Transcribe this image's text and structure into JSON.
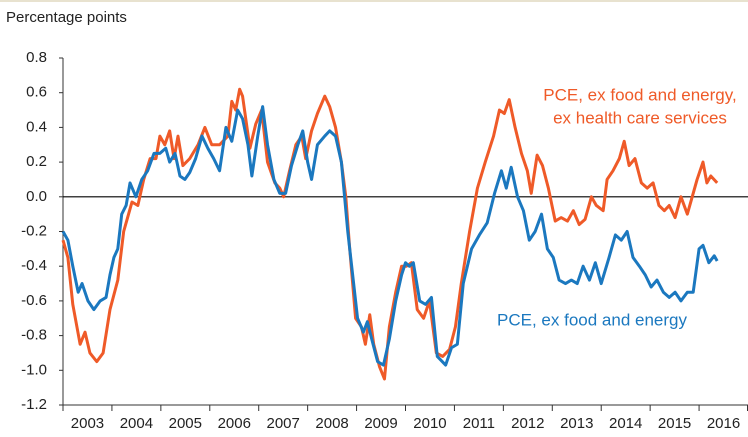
{
  "chart_data": {
    "type": "line",
    "y_axis_label": "Percentage points",
    "xlim": [
      2003,
      2017
    ],
    "xticks": [
      2003,
      2004,
      2005,
      2006,
      2007,
      2008,
      2009,
      2010,
      2011,
      2012,
      2013,
      2014,
      2015,
      2016
    ],
    "ylim": [
      -1.2,
      0.8
    ],
    "yticks": [
      0.8,
      0.6,
      0.4,
      0.2,
      {
        "value": 0,
        "label": "0.0"
      },
      -0.2,
      -0.4,
      -0.6,
      -0.8,
      {
        "value": -1,
        "label": "-1.0"
      },
      -1.2
    ],
    "reference_line": 0,
    "series": [
      {
        "name_lines": [
          "PCE, ex food and energy,",
          "ex health care services"
        ],
        "color": "#ef5a28",
        "x": [
          2003.0,
          2003.1,
          2003.2,
          2003.35,
          2003.45,
          2003.55,
          2003.69,
          2003.82,
          2003.96,
          2004.12,
          2004.24,
          2004.41,
          2004.53,
          2004.65,
          2004.78,
          2004.9,
          2004.98,
          2005.08,
          2005.18,
          2005.27,
          2005.35,
          2005.45,
          2005.59,
          2005.76,
          2005.9,
          2006.04,
          2006.2,
          2006.37,
          2006.45,
          2006.53,
          2006.61,
          2006.67,
          2006.82,
          2006.94,
          2007.06,
          2007.18,
          2007.33,
          2007.43,
          2007.51,
          2007.63,
          2007.76,
          2007.88,
          2007.96,
          2008.08,
          2008.2,
          2008.35,
          2008.45,
          2008.57,
          2008.69,
          2008.78,
          2008.86,
          2008.98,
          2009.1,
          2009.18,
          2009.27,
          2009.35,
          2009.47,
          2009.57,
          2009.67,
          2009.8,
          2009.92,
          2010.02,
          2010.12,
          2010.24,
          2010.37,
          2010.49,
          2010.63,
          2010.76,
          2010.9,
          2011.02,
          2011.14,
          2011.31,
          2011.47,
          2011.63,
          2011.8,
          2011.92,
          2012.02,
          2012.12,
          2012.24,
          2012.37,
          2012.49,
          2012.57,
          2012.69,
          2012.8,
          2012.92,
          2013.06,
          2013.18,
          2013.31,
          2013.43,
          2013.55,
          2013.67,
          2013.8,
          2013.9,
          2014.04,
          2014.12,
          2014.24,
          2014.37,
          2014.47,
          2014.57,
          2014.69,
          2014.82,
          2014.94,
          2015.06,
          2015.18,
          2015.29,
          2015.39,
          2015.51,
          2015.63,
          2015.76,
          2015.86,
          2015.96,
          2016.08,
          2016.16,
          2016.24,
          2016.37
        ],
        "values": [
          -0.25,
          -0.35,
          -0.62,
          -0.85,
          -0.78,
          -0.9,
          -0.95,
          -0.9,
          -0.65,
          -0.48,
          -0.2,
          -0.03,
          -0.05,
          0.1,
          0.22,
          0.22,
          0.35,
          0.3,
          0.38,
          0.22,
          0.35,
          0.18,
          0.22,
          0.3,
          0.4,
          0.3,
          0.3,
          0.35,
          0.55,
          0.5,
          0.62,
          0.58,
          0.28,
          0.42,
          0.5,
          0.2,
          0.08,
          0.05,
          0.0,
          0.15,
          0.3,
          0.35,
          0.22,
          0.38,
          0.48,
          0.58,
          0.52,
          0.4,
          0.2,
          0.0,
          -0.3,
          -0.7,
          -0.75,
          -0.85,
          -0.68,
          -0.85,
          -0.98,
          -1.05,
          -0.75,
          -0.55,
          -0.4,
          -0.4,
          -0.38,
          -0.65,
          -0.7,
          -0.6,
          -0.9,
          -0.92,
          -0.88,
          -0.75,
          -0.5,
          -0.2,
          0.05,
          0.2,
          0.35,
          0.5,
          0.48,
          0.56,
          0.4,
          0.25,
          0.15,
          0.02,
          0.24,
          0.18,
          0.05,
          -0.14,
          -0.12,
          -0.14,
          -0.08,
          -0.16,
          -0.13,
          0.0,
          -0.05,
          -0.08,
          0.1,
          0.15,
          0.22,
          0.32,
          0.18,
          0.22,
          0.08,
          0.05,
          0.08,
          -0.05,
          -0.08,
          -0.05,
          -0.12,
          0.0,
          -0.1,
          0.0,
          0.1,
          0.2,
          0.08,
          0.12,
          0.08
        ]
      },
      {
        "name": "PCE, ex food and energy",
        "color": "#1b78bf",
        "x": [
          2003.0,
          2003.1,
          2003.2,
          2003.31,
          2003.39,
          2003.51,
          2003.63,
          2003.76,
          2003.88,
          2003.96,
          2004.04,
          2004.12,
          2004.2,
          2004.29,
          2004.37,
          2004.49,
          2004.61,
          2004.73,
          2004.86,
          2004.98,
          2005.1,
          2005.18,
          2005.29,
          2005.39,
          2005.49,
          2005.59,
          2005.71,
          2005.84,
          2005.96,
          2006.08,
          2006.2,
          2006.33,
          2006.45,
          2006.57,
          2006.67,
          2006.78,
          2006.86,
          2006.98,
          2007.08,
          2007.18,
          2007.31,
          2007.43,
          2007.55,
          2007.67,
          2007.8,
          2007.9,
          2008.0,
          2008.08,
          2008.2,
          2008.35,
          2008.45,
          2008.57,
          2008.69,
          2008.82,
          2008.94,
          2009.02,
          2009.14,
          2009.22,
          2009.31,
          2009.43,
          2009.55,
          2009.67,
          2009.8,
          2009.92,
          2010.0,
          2010.08,
          2010.16,
          2010.29,
          2010.41,
          2010.53,
          2010.65,
          2010.82,
          2010.94,
          2011.06,
          2011.18,
          2011.35,
          2011.51,
          2011.67,
          2011.82,
          2011.96,
          2012.06,
          2012.16,
          2012.29,
          2012.41,
          2012.53,
          2012.65,
          2012.78,
          2012.9,
          2013.02,
          2013.14,
          2013.27,
          2013.39,
          2013.51,
          2013.63,
          2013.76,
          2013.88,
          2014.0,
          2014.16,
          2014.29,
          2014.41,
          2014.53,
          2014.65,
          2014.78,
          2014.9,
          2015.02,
          2015.14,
          2015.27,
          2015.39,
          2015.51,
          2015.63,
          2015.76,
          2015.88,
          2016.0,
          2016.08,
          2016.2,
          2016.31,
          2016.37
        ],
        "values": [
          -0.2,
          -0.25,
          -0.4,
          -0.55,
          -0.5,
          -0.6,
          -0.65,
          -0.6,
          -0.58,
          -0.45,
          -0.35,
          -0.3,
          -0.1,
          -0.05,
          0.08,
          0.0,
          0.1,
          0.15,
          0.25,
          0.25,
          0.28,
          0.2,
          0.25,
          0.12,
          0.1,
          0.14,
          0.22,
          0.35,
          0.28,
          0.22,
          0.15,
          0.4,
          0.32,
          0.5,
          0.45,
          0.3,
          0.12,
          0.35,
          0.52,
          0.3,
          0.1,
          0.02,
          0.02,
          0.18,
          0.3,
          0.38,
          0.2,
          0.1,
          0.3,
          0.35,
          0.38,
          0.35,
          0.2,
          -0.2,
          -0.5,
          -0.7,
          -0.78,
          -0.72,
          -0.82,
          -0.95,
          -0.97,
          -0.82,
          -0.6,
          -0.45,
          -0.38,
          -0.4,
          -0.38,
          -0.6,
          -0.62,
          -0.58,
          -0.92,
          -0.97,
          -0.87,
          -0.85,
          -0.5,
          -0.3,
          -0.22,
          -0.15,
          0.02,
          0.15,
          0.05,
          0.17,
          0.0,
          -0.08,
          -0.25,
          -0.2,
          -0.1,
          -0.3,
          -0.35,
          -0.48,
          -0.5,
          -0.48,
          -0.5,
          -0.4,
          -0.48,
          -0.38,
          -0.5,
          -0.35,
          -0.22,
          -0.25,
          -0.2,
          -0.35,
          -0.4,
          -0.45,
          -0.52,
          -0.48,
          -0.55,
          -0.58,
          -0.55,
          -0.6,
          -0.55,
          -0.55,
          -0.3,
          -0.28,
          -0.38,
          -0.34,
          -0.37
        ]
      }
    ]
  }
}
